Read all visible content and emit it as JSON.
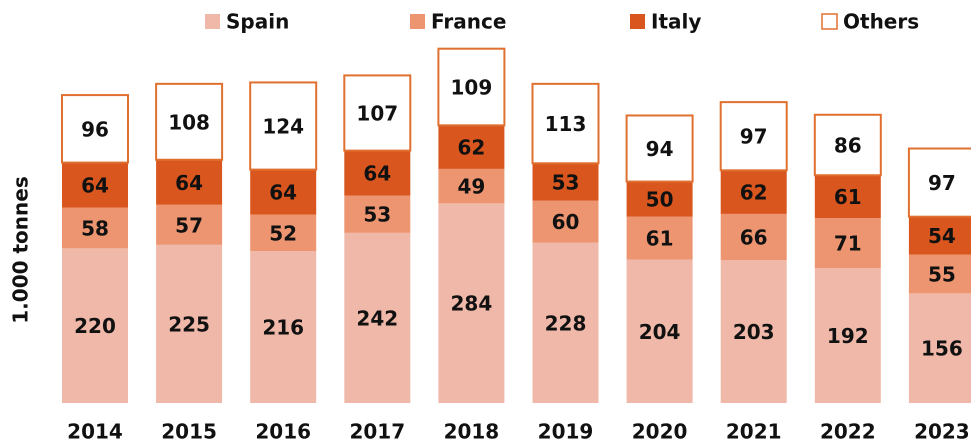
{
  "chart_data": {
    "type": "stacked_bar",
    "y_label": "1.000 tonnes",
    "categories": [
      "2014",
      "2015",
      "2016",
      "2017",
      "2018",
      "2019",
      "2020",
      "2021",
      "2022",
      "2023"
    ],
    "edgecolor": "#e07030",
    "series": [
      {
        "name": "Spain",
        "color": "#efb8a8",
        "values": [
          220,
          225,
          216,
          242,
          284,
          228,
          204,
          203,
          192,
          156
        ]
      },
      {
        "name": "France",
        "color": "#ec9570",
        "values": [
          58,
          57,
          52,
          53,
          49,
          60,
          61,
          66,
          71,
          55
        ]
      },
      {
        "name": "Italy",
        "color": "#d9561e",
        "values": [
          64,
          64,
          64,
          64,
          62,
          53,
          50,
          62,
          61,
          54
        ]
      },
      {
        "name": "Others",
        "color": "#ffffff",
        "values": [
          96,
          108,
          124,
          107,
          109,
          113,
          94,
          97,
          86,
          97
        ]
      }
    ]
  }
}
